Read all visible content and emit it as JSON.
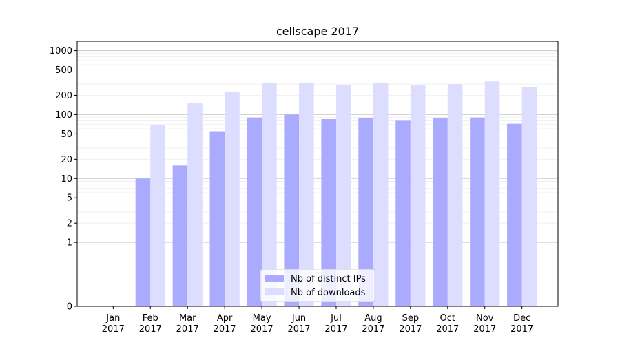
{
  "chart_data": {
    "type": "bar",
    "title": "cellscape 2017",
    "xlabel": "",
    "ylabel": "",
    "yscale": "symlog",
    "ylim": [
      0,
      1400
    ],
    "yticks": [
      0,
      1,
      2,
      5,
      10,
      20,
      50,
      100,
      200,
      500,
      1000
    ],
    "grid": "major horizontal lines plus faint minor lines",
    "legend_position": "bottom-center",
    "categories": [
      "Jan\n2017",
      "Feb\n2017",
      "Mar\n2017",
      "Apr\n2017",
      "May\n2017",
      "Jun\n2017",
      "Jul\n2017",
      "Aug\n2017",
      "Sep\n2017",
      "Oct\n2017",
      "Nov\n2017",
      "Dec\n2017"
    ],
    "series": [
      {
        "name": "Nb of distinct IPs",
        "color": "#aaaaff",
        "values": [
          0,
          10,
          16,
          55,
          90,
          100,
          85,
          88,
          80,
          88,
          90,
          72
        ]
      },
      {
        "name": "Nb of downloads",
        "color": "#ddddff",
        "values": [
          0,
          70,
          150,
          230,
          310,
          310,
          290,
          310,
          285,
          300,
          330,
          270
        ]
      }
    ]
  }
}
